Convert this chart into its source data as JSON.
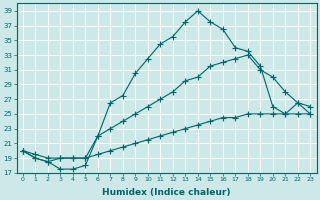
{
  "xlabel": "Humidex (Indice chaleur)",
  "bg_color": "#cce8e8",
  "grid_color": "#ffffff",
  "line_color": "#006666",
  "xlim": [
    -0.5,
    23.5
  ],
  "ylim": [
    17,
    40
  ],
  "yticks": [
    17,
    19,
    21,
    23,
    25,
    27,
    29,
    31,
    33,
    35,
    37,
    39
  ],
  "xticks": [
    0,
    1,
    2,
    3,
    4,
    5,
    6,
    7,
    8,
    9,
    10,
    11,
    12,
    13,
    14,
    15,
    16,
    17,
    18,
    19,
    20,
    21,
    22,
    23
  ],
  "series": [
    {
      "x": [
        0,
        1,
        2,
        3,
        4,
        5,
        6,
        7,
        8,
        9,
        10,
        11,
        12,
        13,
        14,
        15,
        16,
        17,
        18,
        19,
        20,
        21,
        22,
        23
      ],
      "y": [
        20,
        19,
        18.5,
        17.5,
        17.5,
        18,
        22,
        26.5,
        27.5,
        30.5,
        32.5,
        34.5,
        35.5,
        37.5,
        39,
        37.5,
        36.5,
        34,
        33.5,
        31.5,
        26,
        25,
        26.5,
        25
      ]
    },
    {
      "x": [
        0,
        1,
        2,
        3,
        4,
        5,
        6,
        7,
        8,
        9,
        10,
        11,
        12,
        13,
        14,
        15,
        16,
        17,
        18,
        19,
        20,
        21,
        22,
        23
      ],
      "y": [
        20,
        19,
        18.5,
        19,
        19,
        19,
        22,
        23,
        24,
        25,
        26,
        27,
        28,
        29.5,
        30,
        31.5,
        32,
        32.5,
        33,
        31,
        30,
        28,
        26.5,
        26
      ]
    },
    {
      "x": [
        0,
        1,
        2,
        3,
        4,
        5,
        6,
        7,
        8,
        9,
        10,
        11,
        12,
        13,
        14,
        15,
        16,
        17,
        18,
        19,
        20,
        21,
        22,
        23
      ],
      "y": [
        20,
        19.5,
        19,
        19,
        19,
        19,
        19.5,
        20,
        20.5,
        21,
        21.5,
        22,
        22.5,
        23,
        23.5,
        24,
        24.5,
        24.5,
        25,
        25,
        25,
        25,
        25,
        25
      ]
    }
  ]
}
